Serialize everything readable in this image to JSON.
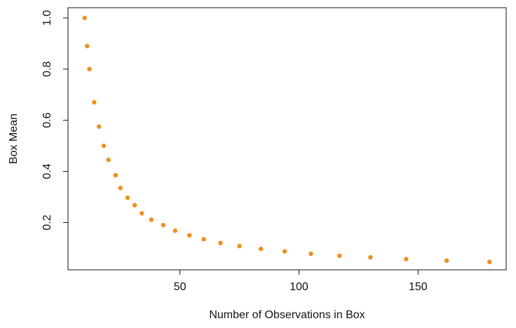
{
  "chart_data": {
    "type": "scatter",
    "title": "",
    "xlabel": "Number of Observations in Box",
    "ylabel": "Box Mean",
    "xlim": [
      3,
      187
    ],
    "ylim": [
      0.015,
      1.04
    ],
    "x_ticks": [
      50,
      100,
      150
    ],
    "y_ticks": [
      0.2,
      0.4,
      0.6,
      0.8,
      1.0
    ],
    "x_tick_labels": [
      "50",
      "100",
      "150"
    ],
    "y_tick_labels": [
      "0.2",
      "0.4",
      "0.6",
      "0.8",
      "1.0"
    ],
    "grid": false,
    "legend": "none",
    "marker_color": "#f28e1c",
    "series": [
      {
        "x": [
          10,
          11,
          12,
          14,
          16,
          18,
          20,
          23,
          25,
          28,
          31,
          34,
          38,
          43,
          48,
          54,
          60,
          67,
          75,
          84,
          94,
          105,
          117,
          130,
          145,
          162,
          180
        ],
        "y": [
          1.0,
          0.89,
          0.8,
          0.67,
          0.575,
          0.5,
          0.445,
          0.385,
          0.335,
          0.297,
          0.268,
          0.236,
          0.211,
          0.19,
          0.168,
          0.15,
          0.135,
          0.12,
          0.108,
          0.097,
          0.087,
          0.078,
          0.07,
          0.064,
          0.057,
          0.051,
          0.046
        ]
      }
    ]
  }
}
